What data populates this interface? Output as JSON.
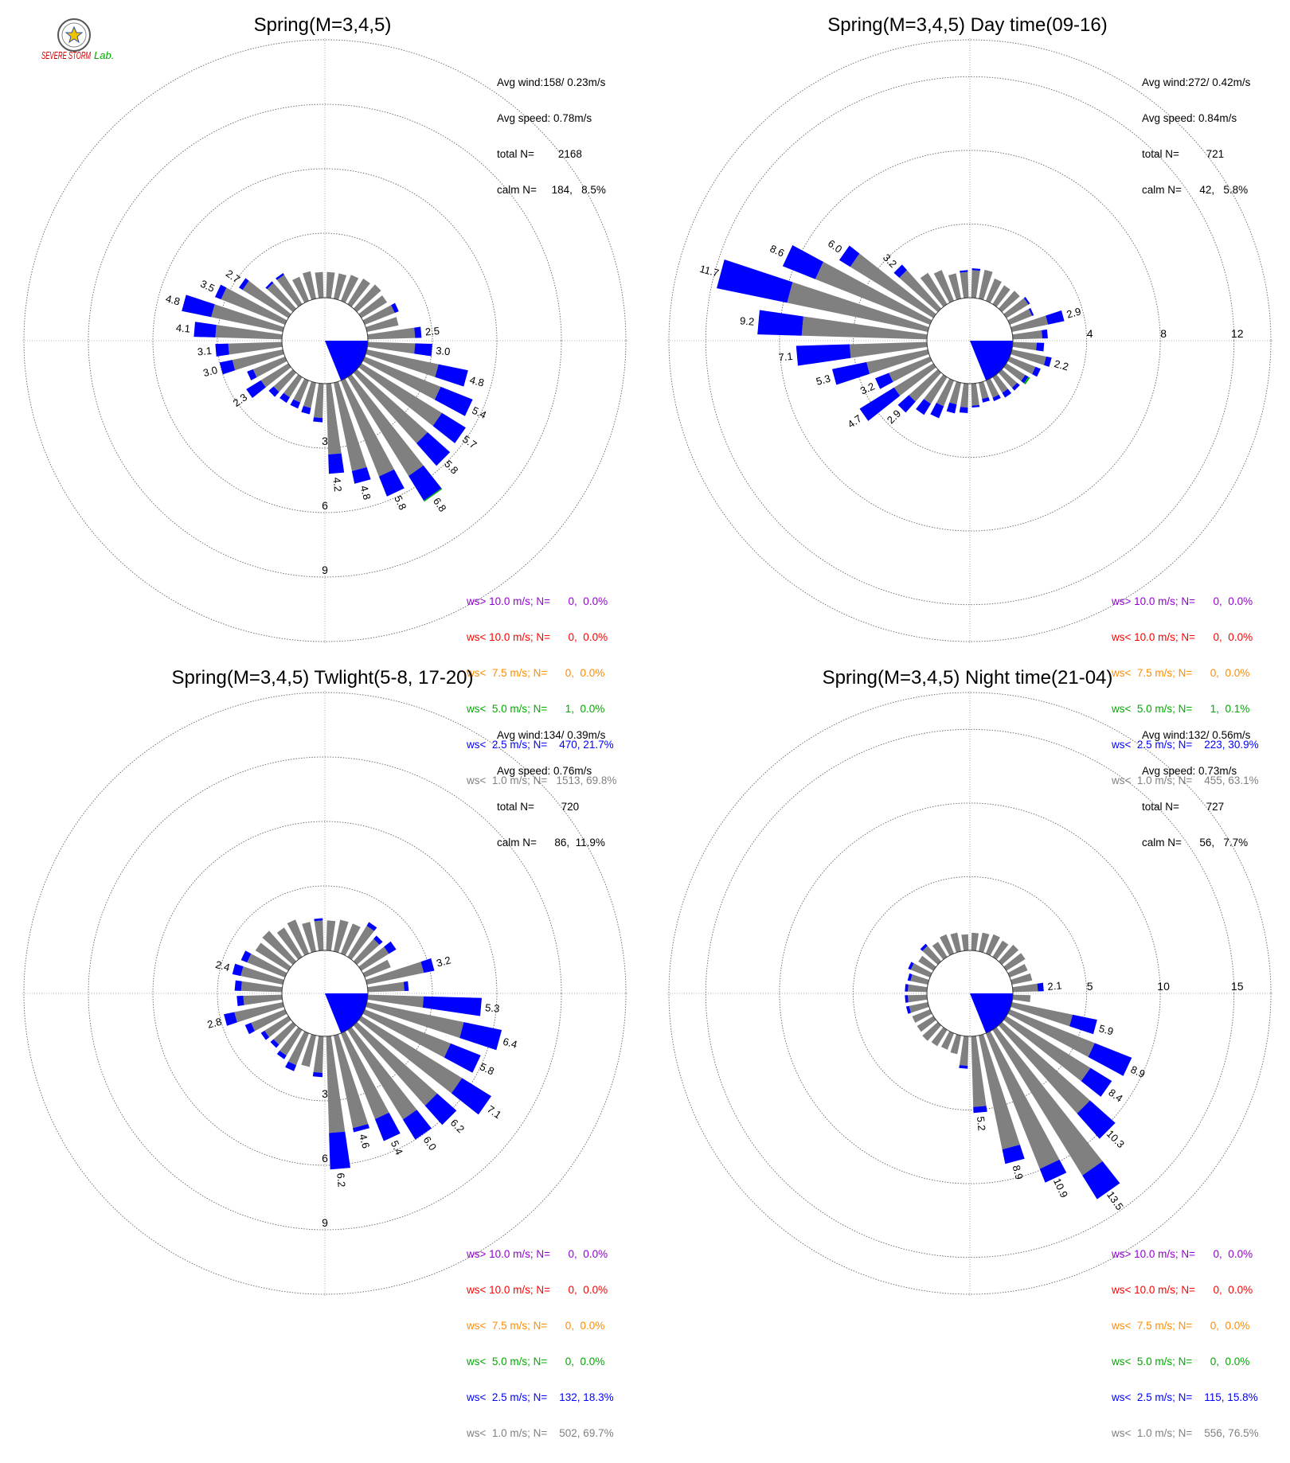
{
  "colors": {
    "ws_gt_10": "#9400d3",
    "ws_lt_10": "#ff0000",
    "ws_lt_7_5": "#ff8c00",
    "ws_lt_5": "#00aa00",
    "ws_lt_2_5": "#0000ff",
    "ws_lt_1": "#808080",
    "calm": "#808080"
  },
  "logo": {
    "text_main": "SEVERE STORM",
    "text_lab": "Lab."
  },
  "chart_data": [
    {
      "type": "wind_rose",
      "title": "Spring(M=3,4,5)",
      "stats": {
        "avg_wind": "Avg wind:158/ 0.23m/s",
        "avg_speed": "Avg speed: 0.78m/s",
        "total_n": "total N=        2168",
        "calm_n": "calm N=     184,   8.5%"
      },
      "rings": {
        "max": 12,
        "labels": [
          {
            "value": 3,
            "text": "3"
          },
          {
            "value": 6,
            "text": "6"
          },
          {
            "value": 9,
            "text": "9"
          }
        ],
        "label_direction": 180
      },
      "petals": [
        {
          "dir": 85,
          "gray": 2.2,
          "blue": 0.3,
          "label": "2.5"
        },
        {
          "dir": 95,
          "gray": 2.2,
          "blue": 0.8,
          "label": "3.0"
        },
        {
          "dir": 105,
          "gray": 3.4,
          "blue": 1.4,
          "label": "4.8"
        },
        {
          "dir": 115,
          "gray": 3.8,
          "blue": 1.6,
          "label": "5.4"
        },
        {
          "dir": 125,
          "gray": 4.4,
          "blue": 1.3,
          "label": "5.7"
        },
        {
          "dir": 135,
          "gray": 4.4,
          "blue": 1.4,
          "label": "5.8"
        },
        {
          "dir": 145,
          "gray": 5.4,
          "blue": 1.35,
          "green": 0.05,
          "label": "6.8"
        },
        {
          "dir": 155,
          "gray": 4.8,
          "blue": 1.0,
          "label": "5.8"
        },
        {
          "dir": 165,
          "gray": 4.2,
          "blue": 0.6,
          "label": "4.8"
        },
        {
          "dir": 175,
          "gray": 3.3,
          "blue": 0.9,
          "label": "4.2"
        },
        {
          "dir": 185,
          "gray": 1.6,
          "blue": 0.2
        },
        {
          "dir": 195,
          "gray": 1.2,
          "blue": 0.3
        },
        {
          "dir": 205,
          "gray": 1.1,
          "blue": 0.3
        },
        {
          "dir": 215,
          "gray": 1.1,
          "blue": 0.3
        },
        {
          "dir": 225,
          "gray": 1.2,
          "blue": 0.3
        },
        {
          "dir": 235,
          "gray": 1.5,
          "blue": 0.8,
          "label": "2.3"
        },
        {
          "dir": 245,
          "gray": 1.6,
          "blue": 0.3
        },
        {
          "dir": 255,
          "gray": 2.4,
          "blue": 0.6,
          "label": "3.0"
        },
        {
          "dir": 265,
          "gray": 2.5,
          "blue": 0.6,
          "label": "3.1"
        },
        {
          "dir": 275,
          "gray": 3.1,
          "blue": 1.0,
          "label": "4.1"
        },
        {
          "dir": 285,
          "gray": 3.4,
          "blue": 1.4,
          "label": "4.8"
        },
        {
          "dir": 295,
          "gray": 3.2,
          "blue": 0.3,
          "label": "3.5"
        },
        {
          "dir": 305,
          "gray": 2.5,
          "blue": 0.2,
          "label": "2.7"
        },
        {
          "dir": 315,
          "gray": 1.6,
          "blue": 0.1
        },
        {
          "dir": 325,
          "gray": 1.6,
          "blue": 0.1
        },
        {
          "dir": 335,
          "gray": 1.2
        },
        {
          "dir": 345,
          "gray": 1.3
        },
        {
          "dir": 355,
          "gray": 1.2
        },
        {
          "dir": 5,
          "gray": 1.2
        },
        {
          "dir": 15,
          "gray": 1.2
        },
        {
          "dir": 25,
          "gray": 1.3
        },
        {
          "dir": 35,
          "gray": 1.4
        },
        {
          "dir": 45,
          "gray": 1.5
        },
        {
          "dir": 55,
          "gray": 1.4
        },
        {
          "dir": 65,
          "gray": 1.5,
          "blue": 0.2
        },
        {
          "dir": 75,
          "gray": 1.5
        }
      ],
      "legend": [
        {
          "text": "ws> 10.0 m/s; N=      0,  0.0%",
          "color": "ws_gt_10"
        },
        {
          "text": "ws< 10.0 m/s; N=      0,  0.0%",
          "color": "ws_lt_10"
        },
        {
          "text": "ws<  7.5 m/s; N=      0,  0.0%",
          "color": "ws_lt_7_5"
        },
        {
          "text": "ws<  5.0 m/s; N=      1,  0.0%",
          "color": "ws_lt_5"
        },
        {
          "text": "ws<  2.5 m/s; N=    470, 21.7%",
          "color": "ws_lt_2_5"
        },
        {
          "text": "ws<  1.0 m/s; N=   1513, 69.8%",
          "color": "ws_lt_1"
        }
      ]
    },
    {
      "type": "wind_rose",
      "title": "Spring(M=3,4,5) Day time(09-16)",
      "stats": {
        "avg_wind": "Avg wind:272/ 0.42m/s",
        "avg_speed": "Avg speed: 0.84m/s",
        "total_n": "total N=         721",
        "calm_n": "calm N=      42,   5.8%"
      },
      "rings": {
        "max": 14,
        "labels": [
          {
            "value": 4,
            "text": "4"
          },
          {
            "value": 8,
            "text": "8"
          },
          {
            "value": 12,
            "text": "12"
          }
        ],
        "label_direction": 90
      },
      "petals": [
        {
          "dir": 75,
          "gray": 2.0,
          "blue": 0.9,
          "label": "2.9"
        },
        {
          "dir": 85,
          "gray": 1.6,
          "blue": 0.3
        },
        {
          "dir": 95,
          "gray": 1.3,
          "blue": 0.4
        },
        {
          "dir": 105,
          "gray": 1.9,
          "blue": 0.3,
          "label": "2.2"
        },
        {
          "dir": 115,
          "gray": 1.5,
          "blue": 0.3
        },
        {
          "dir": 125,
          "gray": 1.2,
          "blue": 0.2,
          "green": 0.1
        },
        {
          "dir": 135,
          "gray": 1.1,
          "blue": 0.2
        },
        {
          "dir": 145,
          "gray": 1.0,
          "blue": 0.3
        },
        {
          "dir": 155,
          "gray": 1.0,
          "blue": 0.2
        },
        {
          "dir": 165,
          "gray": 0.9,
          "blue": 0.2
        },
        {
          "dir": 175,
          "gray": 1.2,
          "blue": 0.1
        },
        {
          "dir": 185,
          "gray": 1.3,
          "blue": 0.3
        },
        {
          "dir": 195,
          "gray": 1.2,
          "blue": 0.5
        },
        {
          "dir": 205,
          "gray": 1.5,
          "blue": 0.7
        },
        {
          "dir": 215,
          "gray": 1.7,
          "blue": 0.7
        },
        {
          "dir": 225,
          "gray": 2.1,
          "blue": 0.8,
          "label": "2.9"
        },
        {
          "dir": 235,
          "gray": 2.5,
          "blue": 2.2,
          "label": "4.7"
        },
        {
          "dir": 245,
          "gray": 2.4,
          "blue": 0.8,
          "label": "3.2"
        },
        {
          "dir": 255,
          "gray": 3.4,
          "blue": 1.9,
          "label": "5.3"
        },
        {
          "dir": 265,
          "gray": 4.2,
          "blue": 2.9,
          "label": "7.1"
        },
        {
          "dir": 275,
          "gray": 6.8,
          "blue": 2.4,
          "label": "9.2"
        },
        {
          "dir": 285,
          "gray": 7.8,
          "blue": 3.9,
          "label": "11.7"
        },
        {
          "dir": 295,
          "gray": 6.7,
          "blue": 1.9,
          "label": "8.6"
        },
        {
          "dir": 305,
          "gray": 5.3,
          "blue": 0.7,
          "label": "6.0"
        },
        {
          "dir": 315,
          "gray": 2.8,
          "blue": 0.4,
          "label": "3.2"
        },
        {
          "dir": 325,
          "gray": 2.0
        },
        {
          "dir": 335,
          "gray": 1.8
        },
        {
          "dir": 345,
          "gray": 1.4
        },
        {
          "dir": 355,
          "gray": 1.4,
          "blue": 0.1
        },
        {
          "dir": 5,
          "gray": 1.5,
          "blue": 0.1
        },
        {
          "dir": 15,
          "gray": 1.6
        },
        {
          "dir": 25,
          "gray": 1.3
        },
        {
          "dir": 35,
          "gray": 1.2
        },
        {
          "dir": 45,
          "gray": 1.3
        },
        {
          "dir": 55,
          "gray": 1.4,
          "blue": 0.1
        },
        {
          "dir": 65,
          "gray": 1.3,
          "blue": 0.1
        }
      ],
      "legend": [
        {
          "text": "ws> 10.0 m/s; N=      0,  0.0%",
          "color": "ws_gt_10"
        },
        {
          "text": "ws< 10.0 m/s; N=      0,  0.0%",
          "color": "ws_lt_10"
        },
        {
          "text": "ws<  7.5 m/s; N=      0,  0.0%",
          "color": "ws_lt_7_5"
        },
        {
          "text": "ws<  5.0 m/s; N=      1,  0.1%",
          "color": "ws_lt_5"
        },
        {
          "text": "ws<  2.5 m/s; N=    223, 30.9%",
          "color": "ws_lt_2_5"
        },
        {
          "text": "ws<  1.0 m/s; N=    455, 63.1%",
          "color": "ws_lt_1"
        }
      ]
    },
    {
      "type": "wind_rose",
      "title": "Spring(M=3,4,5) Twlight(5-8, 17-20)",
      "stats": {
        "avg_wind": "Avg wind:134/ 0.39m/s",
        "avg_speed": "Avg speed: 0.76m/s",
        "total_n": "total N=         720",
        "calm_n": "calm N=      86,  11.9%"
      },
      "rings": {
        "max": 12,
        "labels": [
          {
            "value": 3,
            "text": "3"
          },
          {
            "value": 6,
            "text": "6"
          },
          {
            "value": 9,
            "text": "9"
          }
        ],
        "label_direction": 180
      },
      "petals": [
        {
          "dir": 75,
          "gray": 2.7,
          "blue": 0.5,
          "label": "3.2"
        },
        {
          "dir": 85,
          "gray": 1.7,
          "blue": 0.2
        },
        {
          "dir": 95,
          "gray": 2.6,
          "blue": 2.7,
          "label": "5.3"
        },
        {
          "dir": 105,
          "gray": 4.6,
          "blue": 1.8,
          "label": "6.4"
        },
        {
          "dir": 115,
          "gray": 4.3,
          "blue": 1.5,
          "label": "5.8"
        },
        {
          "dir": 125,
          "gray": 5.5,
          "blue": 1.6,
          "label": "7.1"
        },
        {
          "dir": 135,
          "gray": 5.0,
          "blue": 1.2,
          "label": "6.2"
        },
        {
          "dir": 145,
          "gray": 4.9,
          "blue": 1.1,
          "label": "6.0"
        },
        {
          "dir": 155,
          "gray": 4.3,
          "blue": 1.1,
          "label": "5.4"
        },
        {
          "dir": 165,
          "gray": 4.4,
          "blue": 0.2,
          "label": "4.6"
        },
        {
          "dir": 175,
          "gray": 4.5,
          "blue": 1.7,
          "label": "6.2"
        },
        {
          "dir": 185,
          "gray": 1.7,
          "blue": 0.2
        },
        {
          "dir": 195,
          "gray": 1.5
        },
        {
          "dir": 205,
          "gray": 1.6,
          "blue": 0.3
        },
        {
          "dir": 215,
          "gray": 1.4,
          "blue": 0.2
        },
        {
          "dir": 225,
          "gray": 1.2,
          "blue": 0.2
        },
        {
          "dir": 235,
          "gray": 1.3,
          "blue": 0.2
        },
        {
          "dir": 245,
          "gray": 1.7,
          "blue": 0.3
        },
        {
          "dir": 255,
          "gray": 2.3,
          "blue": 0.5,
          "label": "2.8"
        },
        {
          "dir": 265,
          "gray": 1.8,
          "blue": 0.3
        },
        {
          "dir": 275,
          "gray": 1.9,
          "blue": 0.3
        },
        {
          "dir": 285,
          "gray": 2.0,
          "blue": 0.4,
          "label": "2.4"
        },
        {
          "dir": 295,
          "gray": 1.9,
          "blue": 0.3
        },
        {
          "dir": 305,
          "gray": 1.8
        },
        {
          "dir": 315,
          "gray": 1.9
        },
        {
          "dir": 325,
          "gray": 1.6
        },
        {
          "dir": 335,
          "gray": 1.7
        },
        {
          "dir": 345,
          "gray": 1.4
        },
        {
          "dir": 355,
          "gray": 1.4,
          "blue": 0.1
        },
        {
          "dir": 5,
          "gray": 1.4
        },
        {
          "dir": 15,
          "gray": 1.5
        },
        {
          "dir": 25,
          "gray": 1.5
        },
        {
          "dir": 35,
          "gray": 1.7,
          "blue": 0.2
        },
        {
          "dir": 45,
          "gray": 1.4,
          "blue": 0.2
        },
        {
          "dir": 55,
          "gray": 1.5,
          "blue": 0.4
        },
        {
          "dir": 65,
          "gray": 1.3
        }
      ],
      "legend": [
        {
          "text": "ws> 10.0 m/s; N=      0,  0.0%",
          "color": "ws_gt_10"
        },
        {
          "text": "ws< 10.0 m/s; N=      0,  0.0%",
          "color": "ws_lt_10"
        },
        {
          "text": "ws<  7.5 m/s; N=      0,  0.0%",
          "color": "ws_lt_7_5"
        },
        {
          "text": "ws<  5.0 m/s; N=      0,  0.0%",
          "color": "ws_lt_5"
        },
        {
          "text": "ws<  2.5 m/s; N=    132, 18.3%",
          "color": "ws_lt_2_5"
        },
        {
          "text": "ws<  1.0 m/s; N=    502, 69.7%",
          "color": "ws_lt_1"
        }
      ]
    },
    {
      "type": "wind_rose",
      "title": "Spring(M=3,4,5) Night time(21-04)",
      "stats": {
        "avg_wind": "Avg wind:132/ 0.56m/s",
        "avg_speed": "Avg speed: 0.73m/s",
        "total_n": "total N=         727",
        "calm_n": "calm N=      56,   7.7%"
      },
      "rings": {
        "max": 17.5,
        "labels": [
          {
            "value": 5,
            "text": "5"
          },
          {
            "value": 10,
            "text": "10"
          },
          {
            "value": 15,
            "text": "15"
          }
        ],
        "label_direction": 90
      },
      "petals": [
        {
          "dir": 75,
          "gray": 1.4
        },
        {
          "dir": 85,
          "gray": 1.7,
          "blue": 0.4,
          "label": "2.1"
        },
        {
          "dir": 95,
          "gray": 1.2
        },
        {
          "dir": 105,
          "gray": 4.2,
          "blue": 1.7,
          "label": "5.9"
        },
        {
          "dir": 115,
          "gray": 6.2,
          "blue": 2.7,
          "label": "8.9"
        },
        {
          "dir": 125,
          "gray": 6.7,
          "blue": 1.7,
          "label": "8.4"
        },
        {
          "dir": 135,
          "gray": 8.0,
          "blue": 2.3,
          "label": "10.3"
        },
        {
          "dir": 145,
          "gray": 11.6,
          "blue": 1.9,
          "label": "13.5"
        },
        {
          "dir": 155,
          "gray": 9.9,
          "blue": 1.0,
          "label": "10.9"
        },
        {
          "dir": 165,
          "gray": 7.9,
          "blue": 1.0,
          "label": "8.9"
        },
        {
          "dir": 175,
          "gray": 4.8,
          "blue": 0.4,
          "label": "5.2"
        },
        {
          "dir": 185,
          "gray": 2.0,
          "blue": 0.2
        },
        {
          "dir": 195,
          "gray": 1.3
        },
        {
          "dir": 205,
          "gray": 1.2
        },
        {
          "dir": 215,
          "gray": 1.3
        },
        {
          "dir": 225,
          "gray": 1.4
        },
        {
          "dir": 235,
          "gray": 1.3
        },
        {
          "dir": 245,
          "gray": 1.3
        },
        {
          "dir": 255,
          "gray": 1.3,
          "blue": 0.2
        },
        {
          "dir": 265,
          "gray": 1.3,
          "blue": 0.2
        },
        {
          "dir": 275,
          "gray": 1.3,
          "blue": 0.2
        },
        {
          "dir": 285,
          "gray": 1.2,
          "blue": 0.2
        },
        {
          "dir": 295,
          "gray": 1.4,
          "blue": 0.2
        },
        {
          "dir": 305,
          "gray": 1.2
        },
        {
          "dir": 315,
          "gray": 1.4,
          "blue": 0.2
        },
        {
          "dir": 325,
          "gray": 1.2
        },
        {
          "dir": 335,
          "gray": 1.4
        },
        {
          "dir": 345,
          "gray": 1.3
        },
        {
          "dir": 355,
          "gray": 1.1
        },
        {
          "dir": 5,
          "gray": 1.2
        },
        {
          "dir": 15,
          "gray": 1.3
        },
        {
          "dir": 25,
          "gray": 1.4
        },
        {
          "dir": 35,
          "gray": 1.3
        },
        {
          "dir": 45,
          "gray": 1.5
        },
        {
          "dir": 55,
          "gray": 1.5
        },
        {
          "dir": 65,
          "gray": 1.3
        }
      ],
      "legend": [
        {
          "text": "ws> 10.0 m/s; N=      0,  0.0%",
          "color": "ws_gt_10"
        },
        {
          "text": "ws< 10.0 m/s; N=      0,  0.0%",
          "color": "ws_lt_10"
        },
        {
          "text": "ws<  7.5 m/s; N=      0,  0.0%",
          "color": "ws_lt_7_5"
        },
        {
          "text": "ws<  5.0 m/s; N=      0,  0.0%",
          "color": "ws_lt_5"
        },
        {
          "text": "ws<  2.5 m/s; N=    115, 15.8%",
          "color": "ws_lt_2_5"
        },
        {
          "text": "ws<  1.0 m/s; N=    556, 76.5%",
          "color": "ws_lt_1"
        }
      ]
    }
  ]
}
